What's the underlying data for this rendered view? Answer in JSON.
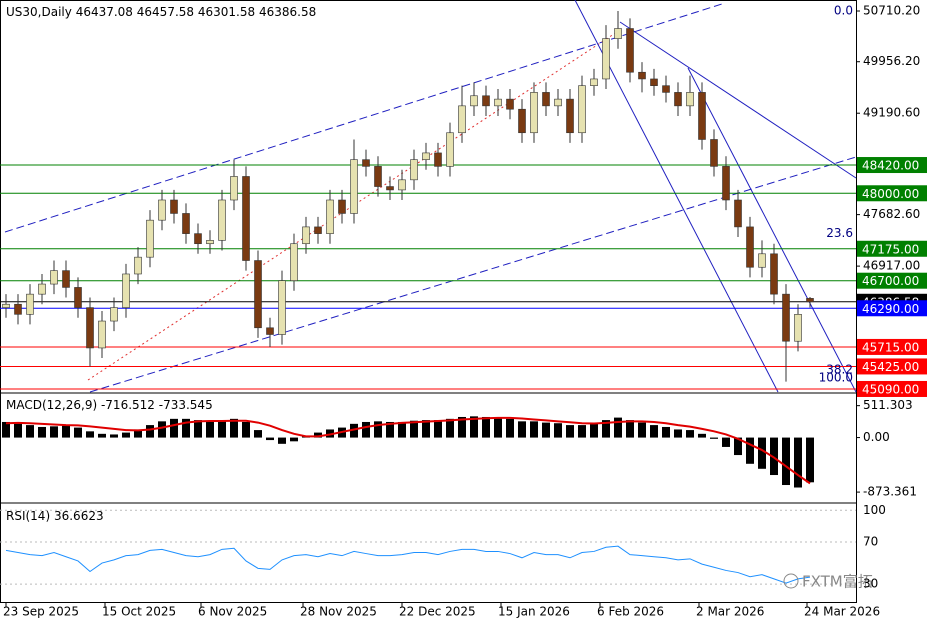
{
  "chart_data": {
    "type": "candlestick",
    "symbol": "US30,Daily",
    "ylim": [
      45045,
      50874
    ],
    "yticks": [
      {
        "value": 50710.2,
        "label": "50710.20"
      },
      {
        "value": 49956.2,
        "label": "49956.20"
      },
      {
        "value": 49190.6,
        "label": "49190.60"
      },
      {
        "value": 47682.6,
        "label": "47682.60"
      },
      {
        "value": 46917,
        "label": "46917.00"
      }
    ],
    "levels": [
      {
        "value": 48420,
        "label": "48420.00",
        "color": "#008000"
      },
      {
        "value": 48000,
        "label": "48000.00",
        "color": "#008000"
      },
      {
        "value": 47175,
        "label": "47175.00",
        "color": "#008000"
      },
      {
        "value": 46700,
        "label": "46700.00",
        "color": "#008000"
      },
      {
        "value": 46386.58,
        "label": "46386.58",
        "color": "#000000"
      },
      {
        "value": 46290,
        "label": "46290.00",
        "color": "#0000ff"
      },
      {
        "value": 45715,
        "label": "45715.00",
        "color": "#ff0000"
      },
      {
        "value": 45425,
        "label": "45425.00",
        "color": "#ff0000"
      },
      {
        "value": 45090,
        "label": "45090.00",
        "color": "#ff0000"
      }
    ],
    "fib_labels": [
      {
        "label": "0.0",
        "price": 50710
      },
      {
        "label": "23.6",
        "price": 47400
      },
      {
        "label": "38.2",
        "price": 45370
      },
      {
        "label": "100.0",
        "price": 45250
      }
    ],
    "xticks": [
      {
        "value": 0,
        "label": "23 Sep 2025"
      },
      {
        "value": 8.25,
        "label": "15 Oct 2025"
      },
      {
        "value": 16.25,
        "label": "6 Nov 2025"
      },
      {
        "value": 24.75,
        "label": "28 Nov 2025"
      },
      {
        "value": 33,
        "label": "22 Dec 2025"
      },
      {
        "value": 41.25,
        "label": "15 Jan 2026"
      },
      {
        "value": 49.5,
        "label": "6 Feb 2026"
      },
      {
        "value": 57.75,
        "label": "2 Mar 2026"
      },
      {
        "value": 66.75,
        "label": "24 Mar 2026"
      }
    ],
    "open": [
      46300,
      46350,
      46200,
      46500,
      46650,
      46850,
      46600,
      46300,
      45700,
      46100,
      46300,
      46800,
      47050,
      47600,
      47900,
      47700,
      47400,
      47250,
      47300,
      47900,
      48250,
      47000,
      46000,
      45900,
      46700,
      47250,
      47500,
      47400,
      47900,
      47700,
      48500,
      48400,
      48100,
      48050,
      48200,
      48500,
      48600,
      48400,
      48900,
      49300,
      49450,
      49300,
      49400,
      49250,
      48900,
      49500,
      49300,
      49400,
      48900,
      49600,
      49700,
      50300,
      50450,
      49800,
      49700,
      49600,
      49500,
      49300,
      49500,
      48800,
      48400,
      47900,
      47500,
      46900,
      47100,
      46500,
      45800,
      46437.08
    ],
    "high": [
      46500,
      46500,
      46650,
      46800,
      47000,
      47000,
      46750,
      46450,
      46250,
      46450,
      46950,
      47200,
      47750,
      48050,
      48050,
      47850,
      47550,
      47450,
      48050,
      48500,
      48400,
      47150,
      46150,
      46850,
      47400,
      47650,
      47650,
      48050,
      48050,
      48800,
      48650,
      48550,
      48250,
      48350,
      48650,
      48750,
      48750,
      49050,
      49600,
      49650,
      49600,
      49550,
      49550,
      49400,
      49650,
      49650,
      49550,
      49550,
      49750,
      49850,
      50500,
      50710,
      50600,
      49950,
      49850,
      49750,
      49650,
      49750,
      49650,
      48950,
      48550,
      48050,
      47650,
      47300,
      47250,
      46650,
      46350,
      46457.58
    ],
    "low": [
      46150,
      46050,
      46050,
      46350,
      46500,
      46450,
      46150,
      45425,
      45550,
      45950,
      46150,
      46650,
      46900,
      47450,
      47550,
      47250,
      47100,
      47100,
      47150,
      47750,
      46850,
      45850,
      45715,
      45750,
      46550,
      47100,
      47250,
      47250,
      47550,
      47550,
      48250,
      47950,
      47900,
      47900,
      48050,
      48350,
      48250,
      48250,
      48750,
      49150,
      49150,
      49150,
      49100,
      48750,
      48750,
      49150,
      49150,
      48750,
      48750,
      49450,
      49550,
      50150,
      49650,
      49500,
      49450,
      49350,
      49150,
      49150,
      48650,
      48250,
      47750,
      47350,
      46750,
      46750,
      46350,
      45200,
      45650,
      46301.58
    ],
    "close": [
      46350,
      46200,
      46500,
      46650,
      46850,
      46600,
      46300,
      45700,
      46100,
      46300,
      46800,
      47050,
      47600,
      47900,
      47700,
      47400,
      47250,
      47300,
      47900,
      48250,
      47000,
      46000,
      45900,
      46700,
      47250,
      47500,
      47400,
      47900,
      47700,
      48500,
      48400,
      48100,
      48050,
      48200,
      48500,
      48600,
      48400,
      48900,
      49300,
      49450,
      49300,
      49400,
      49250,
      48900,
      49500,
      49300,
      49400,
      48900,
      49600,
      49700,
      50300,
      50450,
      49800,
      49700,
      49600,
      49500,
      49300,
      49500,
      48800,
      48400,
      47900,
      47500,
      46900,
      47100,
      46500,
      45800,
      46200,
      46386.58
    ],
    "macd": {
      "name": "MACD(12,26,9)",
      "ylim": [
        -1000,
        650
      ],
      "yticks": [
        511.303,
        {
          "value": 0,
          "label": "0.00"
        },
        -873.361
      ],
      "histogram": [
        250,
        230,
        200,
        170,
        180,
        190,
        160,
        100,
        60,
        50,
        80,
        130,
        200,
        260,
        300,
        300,
        280,
        260,
        270,
        300,
        250,
        120,
        -40,
        -100,
        -60,
        20,
        80,
        130,
        160,
        220,
        250,
        260,
        250,
        250,
        270,
        280,
        280,
        300,
        330,
        340,
        330,
        320,
        300,
        260,
        260,
        240,
        230,
        200,
        200,
        220,
        280,
        320,
        280,
        240,
        200,
        170,
        130,
        120,
        60,
        -20,
        -150,
        -280,
        -420,
        -500,
        -600,
        -760,
        -800,
        -716.512
      ],
      "signal": [
        230,
        235,
        230,
        220,
        210,
        200,
        195,
        180,
        160,
        140,
        120,
        115,
        130,
        160,
        200,
        240,
        260,
        265,
        265,
        270,
        270,
        240,
        190,
        120,
        60,
        20,
        20,
        50,
        90,
        130,
        170,
        200,
        220,
        235,
        245,
        255,
        265,
        275,
        290,
        300,
        310,
        315,
        315,
        305,
        290,
        275,
        260,
        245,
        230,
        225,
        235,
        250,
        260,
        260,
        250,
        230,
        200,
        175,
        140,
        100,
        50,
        -20,
        -110,
        -200,
        -320,
        -460,
        -600,
        -733.545
      ]
    },
    "rsi": {
      "name": "RSI(14)",
      "ylim": [
        15,
        105
      ],
      "yticks": [
        100,
        70,
        30
      ],
      "values": [
        62,
        60,
        58,
        57,
        60,
        56,
        52,
        42,
        50,
        53,
        57,
        58,
        62,
        63,
        60,
        57,
        56,
        58,
        63,
        64,
        52,
        45,
        44,
        53,
        57,
        58,
        56,
        59,
        57,
        61,
        59,
        57,
        57,
        58,
        60,
        60,
        58,
        61,
        63,
        63,
        61,
        61,
        59,
        55,
        60,
        58,
        58,
        55,
        60,
        61,
        65,
        66,
        58,
        57,
        56,
        55,
        53,
        54,
        49,
        46,
        43,
        41,
        37,
        39,
        35,
        31,
        35,
        36.6623
      ]
    },
    "watermark": "FXTM富拓"
  }
}
